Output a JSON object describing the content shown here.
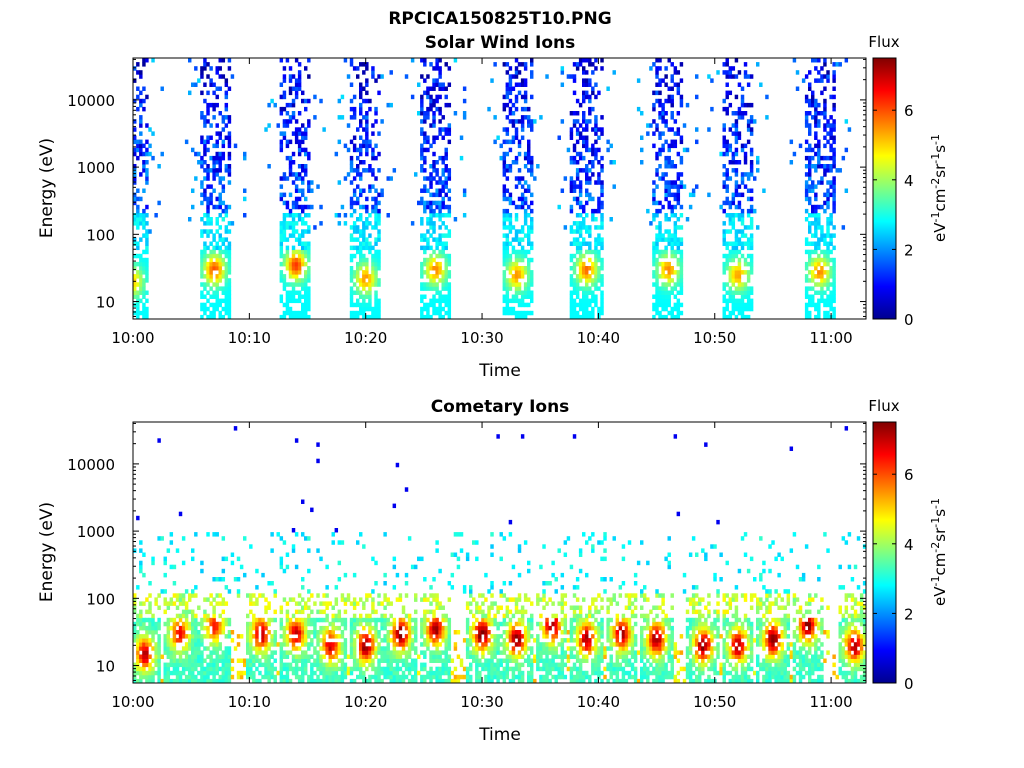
{
  "figure_title": "RPCICA150825T10.PNG",
  "colormap": [
    "#00008f",
    "#0000ff",
    "#0080ff",
    "#00ffff",
    "#80ff80",
    "#ffff00",
    "#ff8000",
    "#ff0000",
    "#800000"
  ],
  "chart_data": [
    {
      "type": "heatmap",
      "title": "Solar Wind Ions",
      "xlabel": "Time",
      "ylabel": "Energy (eV)",
      "x_range": [
        "10:00",
        "11:03"
      ],
      "x_ticks": [
        "10:00",
        "10:10",
        "10:20",
        "10:30",
        "10:40",
        "10:50",
        "11:00"
      ],
      "y_scale": "log",
      "ylim": [
        5.5,
        42000
      ],
      "y_ticks": [
        "10",
        "100",
        "1000",
        "10000"
      ],
      "colorbar": {
        "label": "Flux",
        "unit": "eV⁻¹cm⁻²sr⁻¹s⁻¹",
        "range": [
          0,
          7.5
        ],
        "ticks": [
          "0",
          "2",
          "4",
          "6"
        ]
      },
      "grid": false,
      "bursts": [
        {
          "t": "10:00",
          "peak_energy_eV": 20,
          "peak_flux": 5.0
        },
        {
          "t": "10:07",
          "peak_energy_eV": 30,
          "peak_flux": 6.0
        },
        {
          "t": "10:14",
          "peak_energy_eV": 35,
          "peak_flux": 6.2
        },
        {
          "t": "10:20",
          "peak_energy_eV": 22,
          "peak_flux": 5.5
        },
        {
          "t": "10:26",
          "peak_energy_eV": 30,
          "peak_flux": 5.6
        },
        {
          "t": "10:33",
          "peak_energy_eV": 25,
          "peak_flux": 5.5
        },
        {
          "t": "10:39",
          "peak_energy_eV": 30,
          "peak_flux": 5.8
        },
        {
          "t": "10:46",
          "peak_energy_eV": 30,
          "peak_flux": 5.6
        },
        {
          "t": "10:52",
          "peak_energy_eV": 25,
          "peak_flux": 5.4
        },
        {
          "t": "10:59",
          "peak_energy_eV": 28,
          "peak_flux": 5.6
        }
      ]
    },
    {
      "type": "heatmap",
      "title": "Cometary Ions",
      "xlabel": "Time",
      "ylabel": "Energy (eV)",
      "x_range": [
        "10:00",
        "11:03"
      ],
      "x_ticks": [
        "10:00",
        "10:10",
        "10:20",
        "10:30",
        "10:40",
        "10:50",
        "11:00"
      ],
      "y_scale": "log",
      "ylim": [
        5.5,
        42000
      ],
      "y_ticks": [
        "10",
        "100",
        "1000",
        "10000"
      ],
      "colorbar": {
        "label": "Flux",
        "unit": "eV⁻¹cm⁻²sr⁻¹s⁻¹",
        "range": [
          0,
          7.5
        ],
        "ticks": [
          "0",
          "2",
          "4",
          "6"
        ]
      },
      "grid": false,
      "bursts": [
        {
          "t": "10:01",
          "peak_energy_eV": 15,
          "peak_flux": 6.8
        },
        {
          "t": "10:04",
          "peak_energy_eV": 30,
          "peak_flux": 6.5
        },
        {
          "t": "10:07",
          "peak_energy_eV": 40,
          "peak_flux": 6.3
        },
        {
          "t": "10:11",
          "peak_energy_eV": 30,
          "peak_flux": 7.0
        },
        {
          "t": "10:14",
          "peak_energy_eV": 30,
          "peak_flux": 6.8
        },
        {
          "t": "10:17",
          "peak_energy_eV": 20,
          "peak_flux": 6.7
        },
        {
          "t": "10:20",
          "peak_energy_eV": 20,
          "peak_flux": 7.2
        },
        {
          "t": "10:23",
          "peak_energy_eV": 30,
          "peak_flux": 7.3
        },
        {
          "t": "10:26",
          "peak_energy_eV": 35,
          "peak_flux": 7.0
        },
        {
          "t": "10:30",
          "peak_energy_eV": 30,
          "peak_flux": 7.4
        },
        {
          "t": "10:33",
          "peak_energy_eV": 25,
          "peak_flux": 7.3
        },
        {
          "t": "10:36",
          "peak_energy_eV": 40,
          "peak_flux": 7.2
        },
        {
          "t": "10:39",
          "peak_energy_eV": 25,
          "peak_flux": 7.0
        },
        {
          "t": "10:42",
          "peak_energy_eV": 30,
          "peak_flux": 7.0
        },
        {
          "t": "10:45",
          "peak_energy_eV": 25,
          "peak_flux": 7.1
        },
        {
          "t": "10:49",
          "peak_energy_eV": 20,
          "peak_flux": 7.2
        },
        {
          "t": "10:52",
          "peak_energy_eV": 20,
          "peak_flux": 7.0
        },
        {
          "t": "10:55",
          "peak_energy_eV": 25,
          "peak_flux": 7.3
        },
        {
          "t": "10:58",
          "peak_energy_eV": 40,
          "peak_flux": 7.2
        },
        {
          "t": "11:02",
          "peak_energy_eV": 20,
          "peak_flux": 7.0
        }
      ]
    }
  ]
}
